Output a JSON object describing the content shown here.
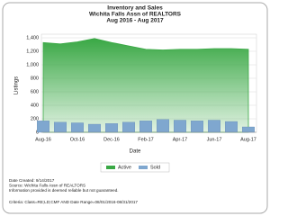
{
  "chart_data": {
    "type": "bar",
    "title": "Inventory and Sales",
    "subtitle": "Wichita Falls Assn of REALTORS",
    "period": "Aug 2016 - Aug 2017",
    "x_label": "Date",
    "y_label": "Listings",
    "categories": [
      "Aug-16",
      null,
      "Oct-16",
      null,
      "Dec-16",
      null,
      "Feb-17",
      null,
      "Apr-17",
      null,
      "Jun-17",
      null,
      "Aug-17"
    ],
    "series": [
      {
        "name": "Active",
        "type": "area",
        "color": "#3aa845",
        "values": [
          1330,
          1310,
          1340,
          1390,
          1330,
          1280,
          1230,
          1220,
          1230,
          1230,
          1240,
          1240,
          1230
        ]
      },
      {
        "name": "Sold",
        "type": "bar",
        "color": "#7fa7cf",
        "values": [
          170,
          150,
          140,
          120,
          130,
          150,
          170,
          190,
          180,
          170,
          180,
          160,
          80
        ]
      }
    ],
    "ylim": [
      0,
      1400
    ],
    "yticks": [
      0,
      200,
      400,
      600,
      800,
      {
        "value": 1000,
        "label": "1,000"
      },
      {
        "value": 1200,
        "label": "1,200"
      },
      {
        "value": 1400,
        "label": "1,400"
      }
    ],
    "grid": true,
    "legend": "bottom",
    "footer": [
      "Date Created: 9/14/2017",
      "Source: Wichita Falls Assn of REALTORS",
      "Information provided is deemed reliable but not guaranteed.",
      "Criteria: Class=RE;LD;CMF AND Date Range=08/01/2016-08/31/2017"
    ]
  }
}
